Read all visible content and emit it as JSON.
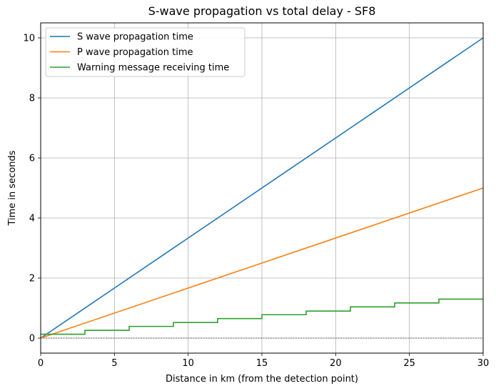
{
  "chart_data": {
    "type": "line",
    "title": "S-wave propagation vs total delay - SF8",
    "xlabel": "Distance in km (from the detection point)",
    "ylabel": "Time in seconds",
    "xlim": [
      0,
      30
    ],
    "ylim": [
      -0.5,
      10.5
    ],
    "xticks": [
      0,
      5,
      10,
      15,
      20,
      25,
      30
    ],
    "yticks": [
      0,
      2,
      4,
      6,
      8,
      10
    ],
    "xtick_labels": [
      "0",
      "5",
      "10",
      "15",
      "20",
      "25",
      "30"
    ],
    "ytick_labels": [
      "0",
      "2",
      "4",
      "6",
      "8",
      "10"
    ],
    "grid": true,
    "legend_position": "top-left",
    "baseline": {
      "y": 0,
      "style": "dashed",
      "color": "#000000"
    },
    "series": [
      {
        "name": "S wave propagation time",
        "color": "#1f77b4",
        "step": false,
        "x": [
          0,
          30
        ],
        "y": [
          0,
          10
        ]
      },
      {
        "name": "P wave propagation time",
        "color": "#ff7f0e",
        "step": false,
        "x": [
          0,
          30
        ],
        "y": [
          0,
          5
        ]
      },
      {
        "name": "Warning message receiving time",
        "color": "#2ca02c",
        "step": true,
        "x": [
          0,
          3,
          6,
          9,
          12,
          15,
          18,
          21,
          24,
          27,
          30
        ],
        "y": [
          0.13,
          0.26,
          0.39,
          0.52,
          0.65,
          0.78,
          0.9,
          1.04,
          1.17,
          1.3,
          1.3
        ]
      }
    ]
  }
}
